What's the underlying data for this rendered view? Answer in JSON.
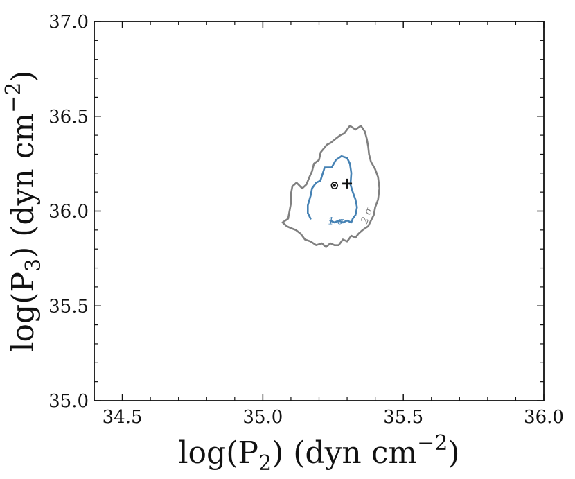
{
  "chart_data": {
    "type": "contour",
    "title": "",
    "xlabel": "log(P2) (dyn cm−2)",
    "ylabel": "log(P3) (dyn cm−2)",
    "xlabel_parts": {
      "prefix": "log(P",
      "sub": "2",
      "mid": ") (dyn cm",
      "sup": "−2",
      "suffix": ")"
    },
    "ylabel_parts": {
      "prefix": "log(P",
      "sub": "3",
      "mid": ") (dyn cm",
      "sup": "−2",
      "suffix": ")"
    },
    "xlim": [
      34.4,
      36.0
    ],
    "ylim": [
      35.0,
      37.0
    ],
    "xticks": [
      34.5,
      35.0,
      35.5,
      36.0
    ],
    "xtick_labels": [
      "34.5",
      "35.0",
      "35.5",
      "36.0"
    ],
    "yticks": [
      35.0,
      35.5,
      36.0,
      36.5,
      37.0
    ],
    "ytick_labels": [
      "35.0",
      "35.5",
      "36.0",
      "36.5",
      "37.0"
    ],
    "x_minor_step": 0.1,
    "y_minor_step": 0.1,
    "grid": false,
    "contours": [
      {
        "level": "2σ",
        "label": "2 σ",
        "color": "#808080",
        "points": [
          [
            35.14,
            36.12
          ],
          [
            35.155,
            36.14
          ],
          [
            35.166,
            36.18
          ],
          [
            35.175,
            36.21
          ],
          [
            35.182,
            36.25
          ],
          [
            35.2,
            36.27
          ],
          [
            35.206,
            36.31
          ],
          [
            35.228,
            36.35
          ],
          [
            35.242,
            36.36
          ],
          [
            35.258,
            36.38
          ],
          [
            35.276,
            36.4
          ],
          [
            35.29,
            36.41
          ],
          [
            35.31,
            36.45
          ],
          [
            35.33,
            36.43
          ],
          [
            35.349,
            36.45
          ],
          [
            35.363,
            36.42
          ],
          [
            35.37,
            36.38
          ],
          [
            35.375,
            36.34
          ],
          [
            35.378,
            36.3
          ],
          [
            35.385,
            36.26
          ],
          [
            35.4,
            36.22
          ],
          [
            35.41,
            36.18
          ],
          [
            35.415,
            36.12
          ],
          [
            35.41,
            36.06
          ],
          [
            35.4,
            36.02
          ],
          [
            35.395,
            35.98
          ],
          [
            35.385,
            35.95
          ],
          [
            35.375,
            35.92
          ],
          [
            35.365,
            35.91
          ],
          [
            35.355,
            35.9
          ],
          [
            35.34,
            35.88
          ],
          [
            35.33,
            35.86
          ],
          [
            35.315,
            35.87
          ],
          [
            35.3,
            35.84
          ],
          [
            35.285,
            35.85
          ],
          [
            35.27,
            35.82
          ],
          [
            35.255,
            35.82
          ],
          [
            35.24,
            35.83
          ],
          [
            35.225,
            35.81
          ],
          [
            35.21,
            35.83
          ],
          [
            35.19,
            35.82
          ],
          [
            35.17,
            35.84
          ],
          [
            35.15,
            35.85
          ],
          [
            35.135,
            35.88
          ],
          [
            35.118,
            35.9
          ],
          [
            35.1,
            35.91
          ],
          [
            35.085,
            35.92
          ],
          [
            35.07,
            35.94
          ],
          [
            35.09,
            35.96
          ],
          [
            35.095,
            36.0
          ],
          [
            35.1,
            36.04
          ],
          [
            35.1,
            36.09
          ],
          [
            35.105,
            36.13
          ],
          [
            35.12,
            36.15
          ],
          [
            35.14,
            36.12
          ]
        ]
      },
      {
        "level": "1σ",
        "label": "1 σ",
        "color": "#4682b4",
        "points": [
          [
            35.17,
            36.08
          ],
          [
            35.175,
            36.12
          ],
          [
            35.19,
            36.15
          ],
          [
            35.205,
            36.16
          ],
          [
            35.22,
            36.23
          ],
          [
            35.245,
            36.23
          ],
          [
            35.26,
            36.27
          ],
          [
            35.28,
            36.29
          ],
          [
            35.3,
            36.28
          ],
          [
            35.31,
            36.25
          ],
          [
            35.315,
            36.2
          ],
          [
            35.312,
            36.14
          ],
          [
            35.32,
            36.1
          ],
          [
            35.33,
            36.06
          ],
          [
            35.335,
            36.02
          ],
          [
            35.33,
            35.98
          ],
          [
            35.32,
            35.96
          ],
          [
            35.315,
            35.94
          ],
          [
            35.3,
            35.95
          ],
          [
            35.285,
            35.94
          ],
          [
            35.27,
            35.95
          ],
          [
            35.255,
            35.94
          ],
          [
            35.24,
            35.95
          ],
          [
            35.22,
            35.94
          ],
          [
            35.2,
            35.95
          ],
          [
            35.18,
            35.94
          ],
          [
            35.17,
            35.96
          ],
          [
            35.16,
            35.99
          ],
          [
            35.16,
            36.03
          ],
          [
            35.17,
            36.08
          ]
        ],
        "label_gap": [
          22,
          26
        ]
      }
    ],
    "markers": [
      {
        "name": "mean-point",
        "shape": "circle-dot",
        "x": 35.255,
        "y": 36.135,
        "color": "#111111"
      },
      {
        "name": "best-fit-point",
        "shape": "plus",
        "x": 35.3,
        "y": 36.145,
        "color": "#111111"
      }
    ],
    "label_positions": [
      {
        "level": "1σ",
        "x": 35.26,
        "y": 35.93
      },
      {
        "level": "2σ",
        "x": 35.38,
        "y": 35.97
      }
    ]
  }
}
